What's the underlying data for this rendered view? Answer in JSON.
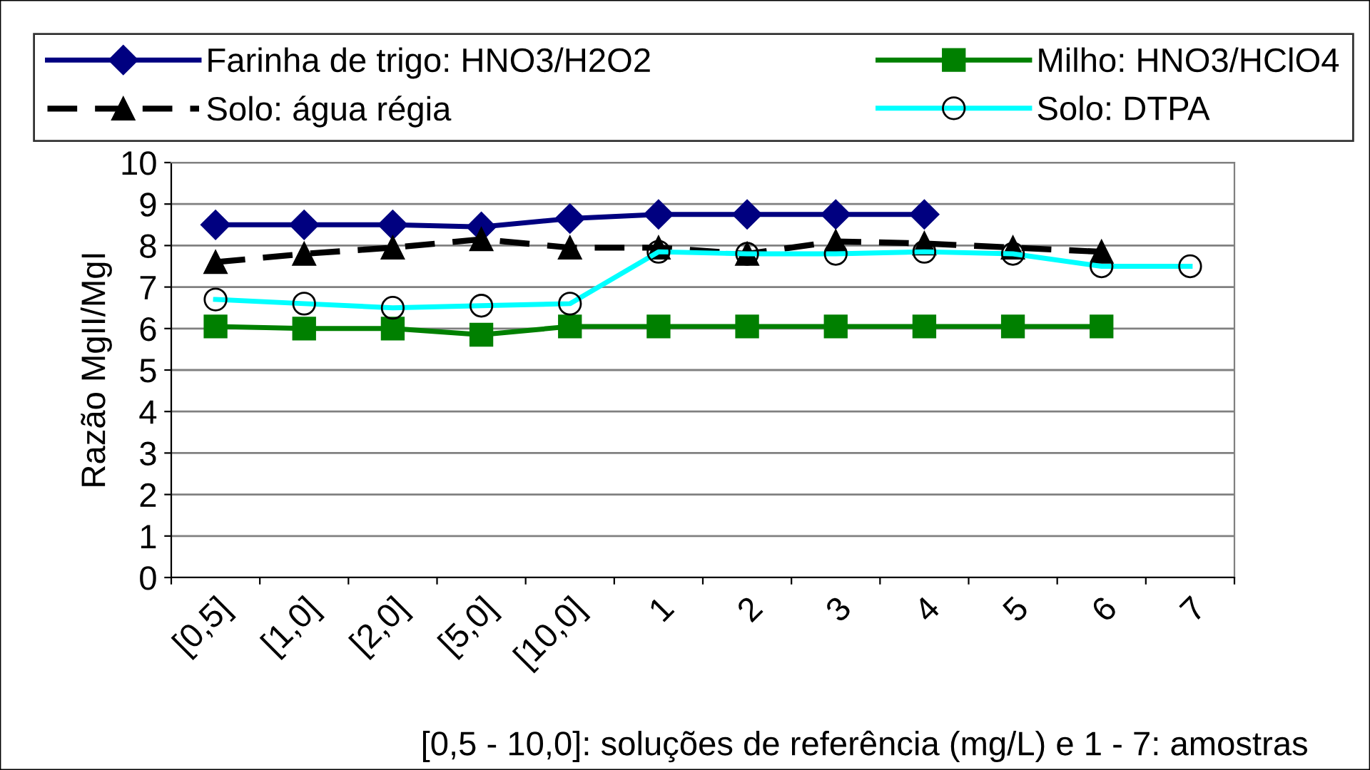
{
  "chart_data": {
    "type": "line",
    "ylabel": "Razão MgII/MgI",
    "xlabel": "[0,5 - 10,0]: soluções de referência (mg/L) e 1 - 7: amostras",
    "categories": [
      "[0,5]",
      "[1,0]",
      "[2,0]",
      "[5,0]",
      "[10,0]",
      "1",
      "2",
      "3",
      "4",
      "5",
      "6",
      "7"
    ],
    "series": [
      {
        "name": "Farinha de trigo: HNO3/H2O2",
        "color": "#000080",
        "marker": "diamond",
        "line_style": "solid",
        "values": [
          8.5,
          8.5,
          8.5,
          8.45,
          8.65,
          8.75,
          8.75,
          8.75,
          8.75,
          null,
          null,
          null
        ]
      },
      {
        "name": "Milho: HNO3/HClO4",
        "color": "#008000",
        "marker": "square",
        "line_style": "solid",
        "values": [
          6.05,
          6.0,
          6.0,
          5.85,
          6.05,
          6.05,
          6.05,
          6.05,
          6.05,
          6.05,
          6.05,
          null
        ]
      },
      {
        "name": "Solo: água régia",
        "color": "#000000",
        "marker": "triangle",
        "line_style": "dashed",
        "values": [
          7.6,
          7.8,
          7.95,
          8.15,
          7.95,
          7.95,
          7.8,
          8.1,
          8.05,
          7.95,
          7.85,
          null
        ]
      },
      {
        "name": "Solo: DTPA",
        "color": "#00ffff",
        "marker": "circle",
        "line_style": "solid",
        "values": [
          6.7,
          6.6,
          6.5,
          6.55,
          6.6,
          7.85,
          7.8,
          7.8,
          7.85,
          7.8,
          7.5,
          7.5
        ]
      }
    ],
    "ylim": [
      0,
      10
    ],
    "yticks": [
      0,
      1,
      2,
      3,
      4,
      5,
      6,
      7,
      8,
      9,
      10
    ],
    "grid": "y",
    "legend": "top"
  }
}
